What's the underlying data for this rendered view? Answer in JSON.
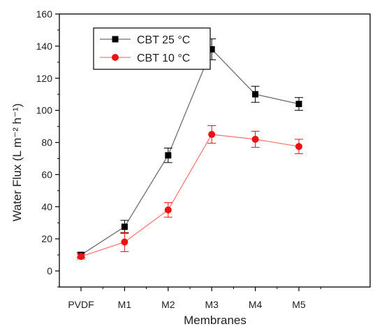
{
  "chart_data": {
    "type": "line",
    "categories": [
      "PVDF",
      "M1",
      "M2",
      "M3",
      "M4",
      "M5"
    ],
    "xlabel": "Membranes",
    "ylabel": "Water Flux (L m⁻² h⁻¹)",
    "ylim": [
      -10,
      160
    ],
    "yticks": [
      0,
      20,
      40,
      60,
      80,
      100,
      120,
      140,
      160
    ],
    "grid": false,
    "legend_position": "top-left",
    "series": [
      {
        "name": "CBT 25 °C",
        "color": "#000000",
        "marker": "square",
        "line_color": "#6e6e6e",
        "values": [
          10,
          27.5,
          72,
          138,
          110,
          104
        ],
        "errors": [
          1.5,
          4,
          4.5,
          6.5,
          5,
          4
        ]
      },
      {
        "name": "CBT 10 °C",
        "color": "#ee1111",
        "marker": "circle",
        "line_color": "#ff7a7a",
        "values": [
          9,
          18,
          38,
          85,
          82,
          77.5
        ],
        "errors": [
          1.5,
          6,
          4.5,
          5.5,
          5,
          4.5
        ]
      }
    ]
  }
}
